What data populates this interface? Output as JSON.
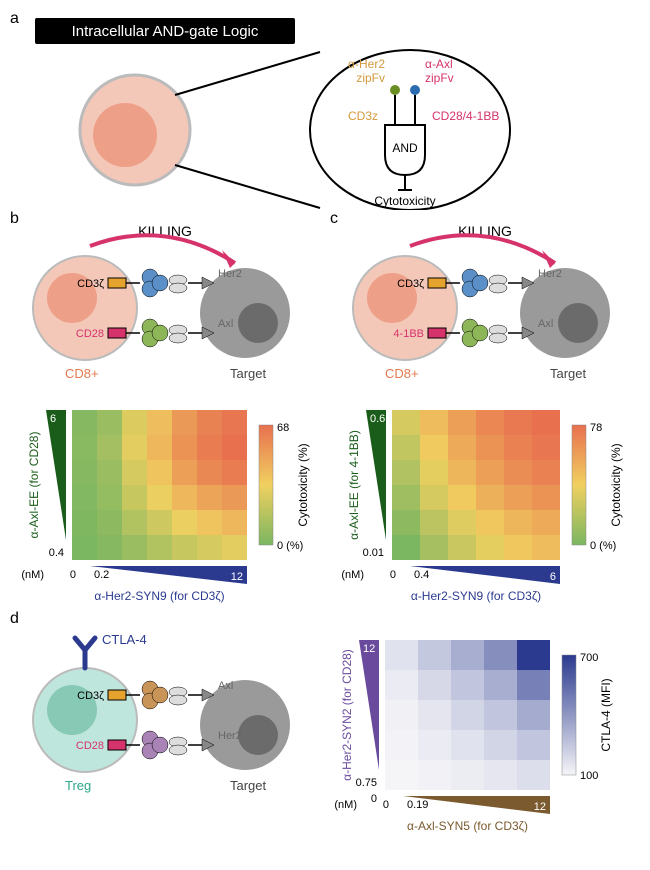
{
  "panel_a": {
    "label": "a",
    "title_banner": "Intracellular AND-gate Logic",
    "banner_bg": "#000000",
    "banner_text_color": "#ffffff",
    "cell_outer_color": "#f4c8b9",
    "cell_inner_color": "#ee9f87",
    "zipfv1_label": "α-Her2\nzipFv",
    "zipfv1_color": "#d39a3c",
    "zipfv2_label": "α-Axl\nzipFv",
    "zipfv2_color": "#d6336c",
    "sig1_label": "CD3z",
    "sig1_color": "#d39a3c",
    "sig2_label": "CD28/4-1BB",
    "sig2_color": "#d6336c",
    "gate_label": "AND",
    "output_label": "Cytotoxicity",
    "dot1_color": "#6b8e23",
    "dot2_color": "#2b6cb0"
  },
  "panel_b": {
    "label": "b",
    "killing_label": "KILLING",
    "killing_color": "#d6336c",
    "tcell_label": "CD8+",
    "tcell_label_color": "#e47a4d",
    "tcell_outer": "#f4c8b9",
    "tcell_inner": "#ee9f87",
    "target_label": "Target",
    "target_fill": "#9a9a9a",
    "target_nucleus": "#6b6b6b",
    "receptor1_label": "CD3ζ",
    "receptor1_color": "#e5a32e",
    "receptor2_label": "CD28",
    "receptor2_color": "#d6336c",
    "ligand1_label": "Her2",
    "ligand2_label": "Axl",
    "scfv1_color": "#5a8fc8",
    "scfv2_color": "#8db658",
    "heatmap": {
      "type": "heatmap",
      "rows": 6,
      "cols": 7,
      "y_label": "α-Axl-EE (for CD28)",
      "y_color": "#1a5d1a",
      "y_min_label": "0.4",
      "y_max_label": "6",
      "x_label": "α-Her2-SYN9 (for CD3ζ)",
      "x_color": "#2b3a8f",
      "x_min_label": "0.2",
      "x_max_label": "12",
      "x_zero": "0",
      "colorbar_label": "Cytotoxicity (%)",
      "colorbar_min": "0 (%)",
      "colorbar_max": "68",
      "gradient_low": "#7bb661",
      "gradient_mid": "#f0d060",
      "gradient_high": "#e8704f",
      "values": [
        [
          4,
          10,
          28,
          40,
          52,
          60,
          64
        ],
        [
          5,
          12,
          30,
          42,
          54,
          62,
          66
        ],
        [
          4,
          10,
          26,
          38,
          50,
          58,
          62
        ],
        [
          3,
          8,
          22,
          32,
          42,
          48,
          52
        ],
        [
          2,
          6,
          16,
          24,
          32,
          38,
          42
        ],
        [
          1,
          4,
          10,
          16,
          22,
          26,
          30
        ]
      ]
    },
    "nm_label": "(nM)"
  },
  "panel_c": {
    "label": "c",
    "killing_label": "KILLING",
    "killing_color": "#d6336c",
    "tcell_label": "CD8+",
    "tcell_label_color": "#e47a4d",
    "tcell_outer": "#f4c8b9",
    "tcell_inner": "#ee9f87",
    "target_label": "Target",
    "target_fill": "#9a9a9a",
    "target_nucleus": "#6b6b6b",
    "receptor1_label": "CD3ζ",
    "receptor1_color": "#e5a32e",
    "receptor2_label": "4-1BB",
    "receptor2_color": "#d6336c",
    "ligand1_label": "Her2",
    "ligand2_label": "Axl",
    "scfv1_color": "#5a8fc8",
    "scfv2_color": "#8db658",
    "heatmap": {
      "type": "heatmap",
      "rows": 6,
      "cols": 6,
      "y_label": "α-Axl-EE (for 4-1BB)",
      "y_color": "#1a5d1a",
      "y_min_label": "0.01",
      "y_max_label": "0.6",
      "x_label": "α-Her2-SYN9 (for CD3ζ)",
      "x_color": "#2b3a8f",
      "x_min_label": "0.4",
      "x_max_label": "6",
      "x_zero": "0",
      "colorbar_label": "Cytotoxicity (%)",
      "colorbar_min": "0 (%)",
      "colorbar_max": "78",
      "gradient_low": "#7bb661",
      "gradient_mid": "#f0d060",
      "gradient_high": "#e8704f",
      "values": [
        [
          35,
          50,
          60,
          68,
          73,
          76
        ],
        [
          30,
          45,
          56,
          64,
          70,
          74
        ],
        [
          25,
          40,
          52,
          60,
          66,
          70
        ],
        [
          20,
          35,
          45,
          54,
          60,
          64
        ],
        [
          15,
          28,
          38,
          46,
          52,
          56
        ],
        [
          10,
          22,
          32,
          40,
          46,
          50
        ]
      ]
    },
    "nm_label": "(nM)"
  },
  "panel_d": {
    "label": "d",
    "tcell_label": "Treg",
    "tcell_label_color": "#2aa88a",
    "tcell_outer": "#bfe6dc",
    "tcell_inner": "#88c9b5",
    "target_label": "Target",
    "target_fill": "#9a9a9a",
    "target_nucleus": "#6b6b6b",
    "ctla4_label": "CTLA-4",
    "ctla4_color": "#2b3a8f",
    "receptor1_label": "CD3ζ",
    "receptor1_color": "#e5a32e",
    "receptor2_label": "CD28",
    "receptor2_color": "#d6336c",
    "ligand1_label": "Axl",
    "ligand2_label": "Her2",
    "scfv1_color": "#c89457",
    "scfv2_color": "#a983b5",
    "heatmap": {
      "type": "heatmap",
      "rows": 5,
      "cols": 5,
      "y_label": "α-Her2-SYN2 (for CD28)",
      "y_color": "#6a4a9c",
      "y_min_label": "0.75",
      "y_zero": "0",
      "y_max_label": "12",
      "x_label": "α-Axl-SYN5 (for CD3ζ)",
      "x_color": "#7a5a2e",
      "x_min_label": "0.19",
      "x_max_label": "12",
      "x_zero": "0",
      "colorbar_label": "CTLA-4 (MFI)",
      "colorbar_min": "100",
      "colorbar_max": "700",
      "gradient_low": "#f5f5f8",
      "gradient_high": "#2b3a8f",
      "values": [
        [
          160,
          240,
          320,
          420,
          680
        ],
        [
          130,
          190,
          250,
          320,
          460
        ],
        [
          115,
          150,
          200,
          250,
          330
        ],
        [
          108,
          130,
          160,
          200,
          250
        ],
        [
          100,
          110,
          125,
          145,
          170
        ]
      ]
    },
    "nm_label": "(nM)"
  }
}
